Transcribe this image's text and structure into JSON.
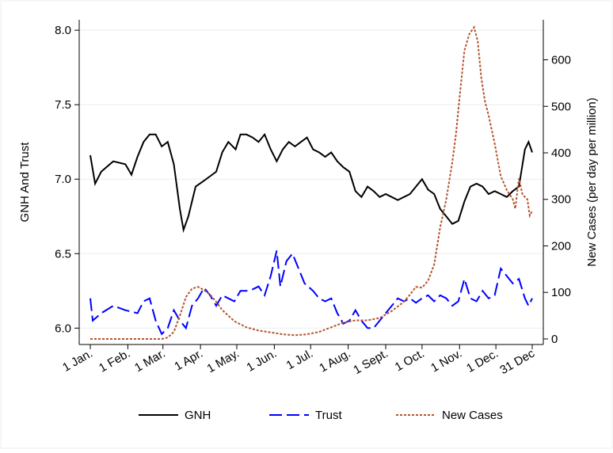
{
  "chart_data": {
    "type": "line",
    "ylabel": "GNH And Trust",
    "y2label": "New Cases (per day per million)",
    "xlim": [
      1,
      366
    ],
    "xticks": [
      {
        "value": 1,
        "label": "1 Jan."
      },
      {
        "value": 32,
        "label": "1 Feb."
      },
      {
        "value": 61,
        "label": "1 Mar."
      },
      {
        "value": 92,
        "label": "1 Apr."
      },
      {
        "value": 122,
        "label": "1 May."
      },
      {
        "value": 153,
        "label": "1 Jun."
      },
      {
        "value": 183,
        "label": "1 Jul."
      },
      {
        "value": 214,
        "label": "1 Aug."
      },
      {
        "value": 245,
        "label": "1 Sept."
      },
      {
        "value": 275,
        "label": "1 Oct."
      },
      {
        "value": 306,
        "label": "1 Nov."
      },
      {
        "value": 336,
        "label": "1 Dec."
      },
      {
        "value": 366,
        "label": "31 Dec"
      }
    ],
    "ylim": [
      5.89,
      8.07
    ],
    "yticks": [
      {
        "value": 6,
        "label": "6.0"
      },
      6.5,
      {
        "value": 7,
        "label": "7.0"
      },
      7.5,
      {
        "value": 8,
        "label": "8.0"
      }
    ],
    "y2lim": [
      -12,
      686
    ],
    "y2ticks": [
      0,
      100,
      200,
      300,
      400,
      500,
      600
    ],
    "grid": true,
    "series": [
      {
        "name": "GNH",
        "color": "#000000",
        "dash": "solid",
        "x": [
          1,
          5,
          10,
          20,
          30,
          35,
          40,
          45,
          50,
          55,
          60,
          65,
          70,
          75,
          78,
          82,
          88,
          95,
          100,
          105,
          110,
          115,
          121,
          125,
          130,
          135,
          140,
          145,
          150,
          155,
          160,
          165,
          170,
          175,
          180,
          185,
          190,
          195,
          200,
          205,
          210,
          215,
          220,
          225,
          230,
          235,
          240,
          245,
          250,
          255,
          260,
          265,
          270,
          275,
          280,
          285,
          290,
          295,
          300,
          305,
          310,
          315,
          320,
          325,
          330,
          335,
          340,
          345,
          350,
          355,
          360,
          363,
          366
        ],
        "values": [
          7.16,
          6.97,
          7.05,
          7.12,
          7.1,
          7.03,
          7.15,
          7.25,
          7.3,
          7.3,
          7.22,
          7.25,
          7.1,
          6.8,
          6.66,
          6.75,
          6.95,
          6.99,
          7.02,
          7.05,
          7.18,
          7.25,
          7.2,
          7.3,
          7.3,
          7.28,
          7.25,
          7.3,
          7.2,
          7.12,
          7.2,
          7.25,
          7.22,
          7.25,
          7.28,
          7.2,
          7.18,
          7.15,
          7.18,
          7.12,
          7.08,
          7.05,
          6.92,
          6.88,
          6.95,
          6.92,
          6.88,
          6.9,
          6.88,
          6.86,
          6.88,
          6.9,
          6.95,
          7.0,
          6.93,
          6.9,
          6.8,
          6.75,
          6.7,
          6.72,
          6.85,
          6.95,
          6.97,
          6.95,
          6.9,
          6.92,
          6.9,
          6.88,
          6.92,
          6.95,
          7.2,
          7.25,
          7.18
        ]
      },
      {
        "name": "Trust",
        "color": "#0000ff",
        "dash": "long",
        "x": [
          1,
          3,
          10,
          20,
          30,
          40,
          45,
          50,
          55,
          60,
          65,
          70,
          75,
          80,
          85,
          90,
          95,
          100,
          105,
          110,
          115,
          120,
          125,
          130,
          135,
          140,
          145,
          150,
          155,
          158,
          163,
          168,
          172,
          178,
          185,
          190,
          195,
          200,
          205,
          210,
          215,
          220,
          225,
          230,
          235,
          240,
          245,
          250,
          255,
          260,
          265,
          270,
          275,
          280,
          285,
          290,
          295,
          300,
          305,
          310,
          315,
          320,
          325,
          330,
          335,
          340,
          345,
          350,
          355,
          360,
          363,
          366
        ],
        "values": [
          6.2,
          6.05,
          6.1,
          6.15,
          6.12,
          6.1,
          6.18,
          6.2,
          6.05,
          5.96,
          6.0,
          6.12,
          6.05,
          6.0,
          6.15,
          6.2,
          6.27,
          6.22,
          6.15,
          6.22,
          6.2,
          6.18,
          6.25,
          6.25,
          6.26,
          6.28,
          6.22,
          6.35,
          6.52,
          6.28,
          6.45,
          6.5,
          6.42,
          6.3,
          6.25,
          6.2,
          6.18,
          6.2,
          6.1,
          6.03,
          6.05,
          6.12,
          6.05,
          6.0,
          6.0,
          6.05,
          6.1,
          6.15,
          6.2,
          6.18,
          6.2,
          6.17,
          6.2,
          6.22,
          6.18,
          6.22,
          6.2,
          6.15,
          6.18,
          6.33,
          6.2,
          6.18,
          6.25,
          6.2,
          6.22,
          6.4,
          6.35,
          6.3,
          6.33,
          6.2,
          6.15,
          6.2
        ]
      },
      {
        "name": "New Cases",
        "color": "#b5542e",
        "dash": "dot",
        "axis": "y2",
        "x": [
          1,
          60,
          65,
          70,
          75,
          80,
          85,
          90,
          95,
          100,
          105,
          110,
          115,
          120,
          130,
          140,
          150,
          160,
          170,
          180,
          190,
          200,
          210,
          220,
          230,
          240,
          250,
          260,
          265,
          270,
          275,
          280,
          285,
          290,
          295,
          300,
          303,
          306,
          310,
          314,
          318,
          321,
          324,
          327,
          330,
          335,
          340,
          345,
          350,
          352,
          355,
          358,
          362,
          364,
          366
        ],
        "values": [
          0,
          0,
          3,
          15,
          50,
          90,
          108,
          112,
          105,
          95,
          80,
          62,
          50,
          38,
          25,
          18,
          14,
          10,
          8,
          10,
          15,
          25,
          35,
          40,
          40,
          45,
          60,
          80,
          95,
          112,
          110,
          125,
          160,
          240,
          300,
          380,
          440,
          520,
          620,
          655,
          670,
          640,
          560,
          510,
          480,
          420,
          350,
          320,
          300,
          280,
          345,
          310,
          300,
          265,
          275
        ]
      }
    ],
    "legend": "bottom"
  }
}
